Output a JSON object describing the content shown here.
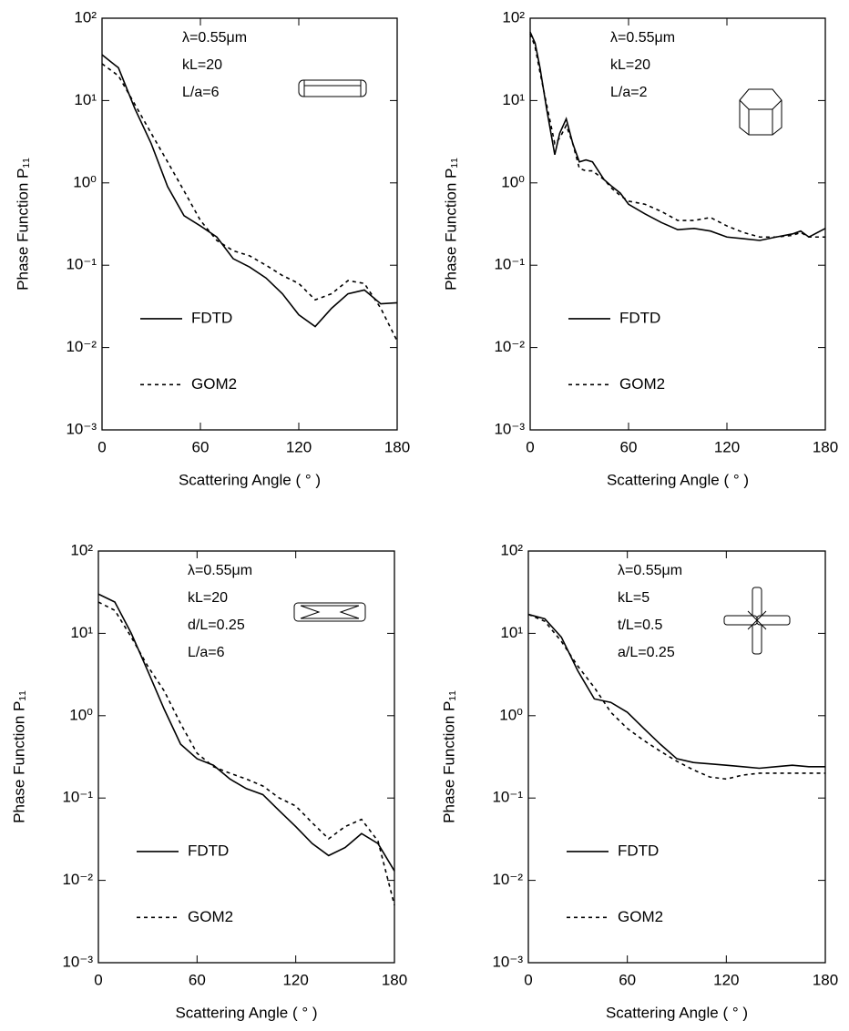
{
  "chart_data": [
    {
      "type": "line",
      "log_y": true,
      "annotations": [
        "λ=0.55μm",
        "kL=20",
        "L/a=6"
      ],
      "xlabel": "Scattering Angle ( ° )",
      "ylabel": "Phase Function P₁₁",
      "xlim": [
        0,
        180
      ],
      "xticks": [
        0,
        60,
        120,
        180
      ],
      "ylim": [
        0.001,
        100
      ],
      "yticks": [
        {
          "value": 0.001,
          "label": "10⁻³"
        },
        {
          "value": 0.01,
          "label": "10⁻²"
        },
        {
          "value": 0.1,
          "label": "10⁻¹"
        },
        {
          "value": 1,
          "label": "10⁰"
        },
        {
          "value": 10,
          "label": "10¹"
        },
        {
          "value": 100,
          "label": "10²"
        }
      ],
      "x": [
        0,
        10,
        20,
        30,
        40,
        50,
        60,
        70,
        80,
        90,
        100,
        110,
        120,
        130,
        140,
        150,
        160,
        170,
        180
      ],
      "series": [
        {
          "name": "FDTD",
          "color": "#000000",
          "linestyle": "solid",
          "values": [
            36,
            25,
            8,
            3,
            0.9,
            0.4,
            0.3,
            0.22,
            0.12,
            0.095,
            0.07,
            0.045,
            0.025,
            0.018,
            0.03,
            0.045,
            0.05,
            0.034,
            0.035
          ]
        },
        {
          "name": "GOM2",
          "color": "#000000",
          "linestyle": "dashed",
          "values": [
            28,
            20,
            9,
            4,
            1.8,
            0.8,
            0.35,
            0.2,
            0.15,
            0.13,
            0.1,
            0.075,
            0.06,
            0.038,
            0.045,
            0.065,
            0.06,
            0.03,
            0.012
          ]
        }
      ]
    },
    {
      "type": "line",
      "log_y": true,
      "annotations": [
        "λ=0.55μm",
        "kL=20",
        "L/a=2"
      ],
      "xlabel": "Scattering Angle ( ° )",
      "ylabel": "Phase Function P₁₁",
      "xlim": [
        0,
        180
      ],
      "xticks": [
        0,
        60,
        120,
        180
      ],
      "ylim": [
        0.001,
        100
      ],
      "yticks": [
        {
          "value": 0.001,
          "label": "10⁻³"
        },
        {
          "value": 0.01,
          "label": "10⁻²"
        },
        {
          "value": 0.1,
          "label": "10⁻¹"
        },
        {
          "value": 1,
          "label": "10⁰"
        },
        {
          "value": 10,
          "label": "10¹"
        },
        {
          "value": 100,
          "label": "10²"
        }
      ],
      "x": [
        0,
        3,
        6,
        10,
        15,
        18,
        22,
        26,
        30,
        34,
        38,
        45,
        50,
        55,
        60,
        70,
        80,
        90,
        100,
        110,
        120,
        130,
        140,
        150,
        160,
        165,
        170,
        180
      ],
      "series": [
        {
          "name": "FDTD",
          "color": "#000000",
          "linestyle": "solid",
          "values": [
            68,
            50,
            25,
            8,
            2.2,
            4,
            6,
            3,
            1.8,
            1.9,
            1.8,
            1.1,
            0.9,
            0.75,
            0.55,
            0.42,
            0.33,
            0.27,
            0.28,
            0.26,
            0.22,
            0.21,
            0.2,
            0.22,
            0.24,
            0.26,
            0.22,
            0.28
          ]
        },
        {
          "name": "GOM2",
          "color": "#000000",
          "linestyle": "dashed",
          "values": [
            65,
            45,
            22,
            9,
            3,
            3.5,
            5,
            3,
            1.5,
            1.4,
            1.4,
            1.1,
            0.85,
            0.7,
            0.6,
            0.55,
            0.45,
            0.35,
            0.35,
            0.38,
            0.3,
            0.25,
            0.22,
            0.22,
            0.23,
            0.25,
            0.22,
            0.22
          ]
        }
      ]
    },
    {
      "type": "line",
      "log_y": true,
      "annotations": [
        "λ=0.55μm",
        "kL=20",
        "d/L=0.25",
        "L/a=6"
      ],
      "xlabel": "Scattering Angle ( ° )",
      "ylabel": "Phase Function P₁₁",
      "xlim": [
        0,
        180
      ],
      "xticks": [
        0,
        60,
        120,
        180
      ],
      "ylim": [
        0.001,
        100
      ],
      "yticks": [
        {
          "value": 0.001,
          "label": "10⁻³"
        },
        {
          "value": 0.01,
          "label": "10⁻²"
        },
        {
          "value": 0.1,
          "label": "10⁻¹"
        },
        {
          "value": 1,
          "label": "10⁰"
        },
        {
          "value": 10,
          "label": "10¹"
        },
        {
          "value": 100,
          "label": "10²"
        }
      ],
      "x": [
        0,
        10,
        20,
        30,
        40,
        50,
        60,
        70,
        80,
        90,
        100,
        110,
        120,
        130,
        140,
        150,
        160,
        170,
        180
      ],
      "series": [
        {
          "name": "FDTD",
          "color": "#000000",
          "linestyle": "solid",
          "values": [
            30,
            24,
            10,
            3.5,
            1.2,
            0.45,
            0.3,
            0.25,
            0.17,
            0.13,
            0.11,
            0.07,
            0.045,
            0.028,
            0.02,
            0.025,
            0.037,
            0.028,
            0.013
          ]
        },
        {
          "name": "GOM2",
          "color": "#000000",
          "linestyle": "dashed",
          "values": [
            24,
            19,
            9,
            4,
            2,
            0.8,
            0.35,
            0.24,
            0.2,
            0.17,
            0.14,
            0.1,
            0.08,
            0.05,
            0.032,
            0.045,
            0.055,
            0.03,
            0.005
          ]
        }
      ]
    },
    {
      "type": "line",
      "log_y": true,
      "annotations": [
        "λ=0.55μm",
        "kL=5",
        "t/L=0.5",
        "a/L=0.25"
      ],
      "xlabel": "Scattering Angle ( ° )",
      "ylabel": "Phase Function P₁₁",
      "xlim": [
        0,
        180
      ],
      "xticks": [
        0,
        60,
        120,
        180
      ],
      "ylim": [
        0.001,
        100
      ],
      "yticks": [
        {
          "value": 0.001,
          "label": "10⁻³"
        },
        {
          "value": 0.01,
          "label": "10⁻²"
        },
        {
          "value": 0.1,
          "label": "10⁻¹"
        },
        {
          "value": 1,
          "label": "10⁰"
        },
        {
          "value": 10,
          "label": "10¹"
        },
        {
          "value": 100,
          "label": "10²"
        }
      ],
      "x": [
        0,
        10,
        20,
        30,
        40,
        50,
        60,
        70,
        80,
        90,
        100,
        110,
        120,
        130,
        140,
        150,
        160,
        170,
        180
      ],
      "series": [
        {
          "name": "FDTD",
          "color": "#000000",
          "linestyle": "solid",
          "values": [
            17,
            15,
            9,
            3.5,
            1.6,
            1.45,
            1.1,
            0.7,
            0.45,
            0.3,
            0.27,
            0.26,
            0.25,
            0.24,
            0.23,
            0.24,
            0.25,
            0.24,
            0.24
          ]
        },
        {
          "name": "GOM2",
          "color": "#000000",
          "linestyle": "dashed",
          "values": [
            17,
            14,
            8,
            4,
            2.2,
            1.1,
            0.7,
            0.5,
            0.37,
            0.28,
            0.22,
            0.18,
            0.17,
            0.19,
            0.2,
            0.2,
            0.2,
            0.2,
            0.2
          ]
        }
      ]
    }
  ]
}
